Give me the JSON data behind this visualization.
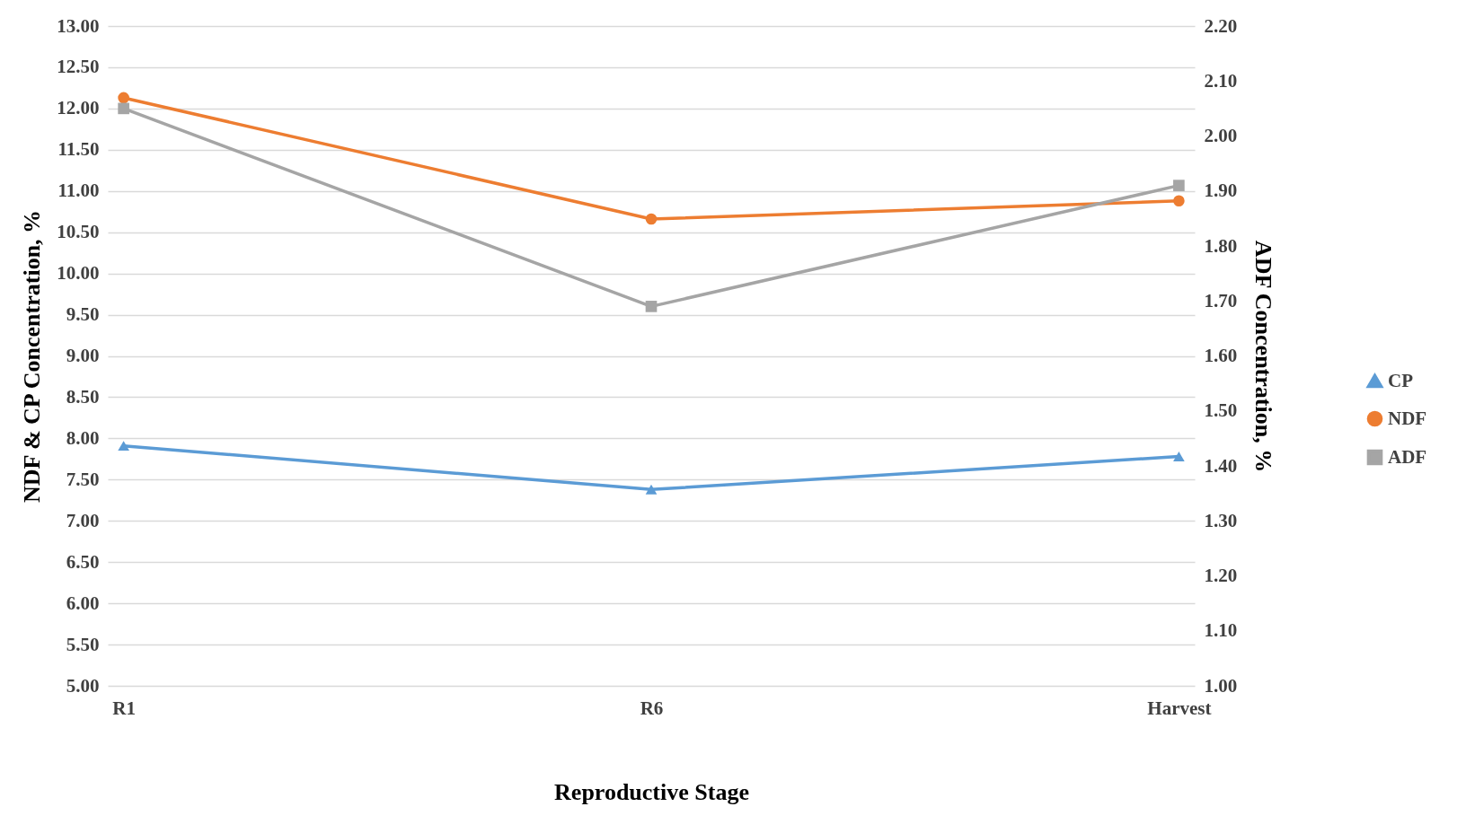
{
  "chart_data": {
    "type": "line",
    "xlabel": "Reproductive Stage",
    "ylabel": "NDF & CP Concentration, %",
    "y2label": "ADF Concentration, %",
    "categories": [
      "R1",
      "R6",
      "Harvest"
    ],
    "series": [
      {
        "name": "CP",
        "color": "#5b9bd5",
        "marker": "triangle",
        "values": [
          7.91,
          7.38,
          7.78
        ]
      },
      {
        "name": "NDF",
        "color": "#ed7d31",
        "marker": "circle",
        "values": [
          12.13,
          10.66,
          10.88
        ]
      },
      {
        "name": "ADF",
        "color": "#a5a5a5",
        "marker": "square",
        "axis": "y2",
        "values": [
          2.05,
          1.69,
          1.91
        ]
      }
    ],
    "ylim": [
      5,
      13
    ],
    "yticks": [
      {
        "value": 5,
        "label": "5.00"
      },
      {
        "value": 5.5,
        "label": "5.50"
      },
      {
        "value": 6,
        "label": "6.00"
      },
      {
        "value": 6.5,
        "label": "6.50"
      },
      {
        "value": 7,
        "label": "7.00"
      },
      {
        "value": 7.5,
        "label": "7.50"
      },
      {
        "value": 8,
        "label": "8.00"
      },
      {
        "value": 8.5,
        "label": "8.50"
      },
      {
        "value": 9,
        "label": "9.00"
      },
      {
        "value": 9.5,
        "label": "9.50"
      },
      {
        "value": 10,
        "label": "10.00"
      },
      {
        "value": 10.5,
        "label": "10.50"
      },
      {
        "value": 11,
        "label": "11.00"
      },
      {
        "value": 11.5,
        "label": "11.50"
      },
      {
        "value": 12,
        "label": "12.00"
      },
      {
        "value": 12.5,
        "label": "12.50"
      },
      {
        "value": 13,
        "label": "13.00"
      }
    ],
    "y2lim": [
      1,
      2.2
    ],
    "y2ticks": [
      {
        "value": 1,
        "label": "1.00"
      },
      {
        "value": 1.1,
        "label": "1.10"
      },
      {
        "value": 1.2,
        "label": "1.20"
      },
      {
        "value": 1.3,
        "label": "1.30"
      },
      {
        "value": 1.4,
        "label": "1.40"
      },
      {
        "value": 1.5,
        "label": "1.50"
      },
      {
        "value": 1.6,
        "label": "1.60"
      },
      {
        "value": 1.7,
        "label": "1.70"
      },
      {
        "value": 1.8,
        "label": "1.80"
      },
      {
        "value": 1.9,
        "label": "1.90"
      },
      {
        "value": 2,
        "label": "2.00"
      },
      {
        "value": 2.1,
        "label": "2.10"
      },
      {
        "value": 2.2,
        "label": "2.20"
      }
    ],
    "grid": "y",
    "legend": "right",
    "line_style": "solid"
  }
}
